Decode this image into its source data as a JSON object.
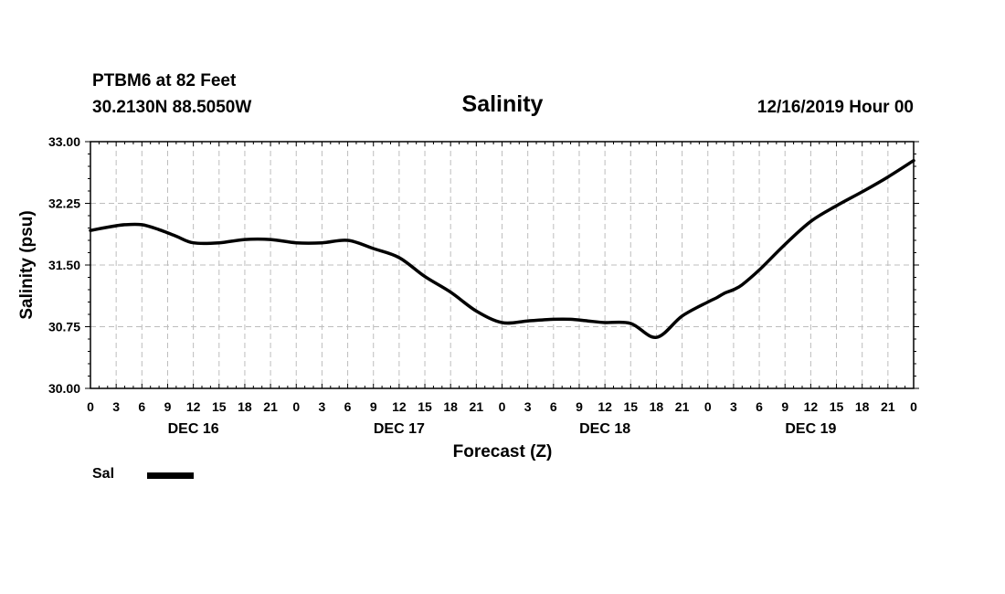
{
  "header": {
    "station": "PTBM6 at 82 Feet",
    "location": "30.2130N 88.5050W",
    "datetime": "12/16/2019 Hour 00"
  },
  "chart_data": {
    "type": "line",
    "title": "Salinity",
    "xlabel": "Forecast (Z)",
    "ylabel": "Salinity (psu)",
    "ylim": [
      30.0,
      33.0
    ],
    "yticks": [
      "30.00",
      "30.75",
      "31.50",
      "32.25",
      "33.00"
    ],
    "xlim": [
      0,
      96
    ],
    "xticks_hours": [
      0,
      3,
      6,
      9,
      12,
      15,
      18,
      21,
      24,
      27,
      30,
      33,
      36,
      39,
      42,
      45,
      48,
      51,
      54,
      57,
      60,
      63,
      66,
      69,
      72,
      75,
      78,
      81,
      84,
      87,
      90,
      93,
      96
    ],
    "xtick_labels": [
      "0",
      "3",
      "6",
      "9",
      "12",
      "15",
      "18",
      "21",
      "0",
      "3",
      "6",
      "9",
      "12",
      "15",
      "18",
      "21",
      "0",
      "3",
      "6",
      "9",
      "12",
      "15",
      "18",
      "21",
      "0",
      "3",
      "6",
      "9",
      "12",
      "15",
      "18",
      "21",
      "0"
    ],
    "day_labels": [
      {
        "hour": 12,
        "label": "DEC 16"
      },
      {
        "hour": 36,
        "label": "DEC 17"
      },
      {
        "hour": 60,
        "label": "DEC 18"
      },
      {
        "hour": 84,
        "label": "DEC 19"
      }
    ],
    "grid": true,
    "legend_position": "bottom-left",
    "series": [
      {
        "name": "Sal",
        "color": "#000000",
        "x": [
          0,
          2,
          4,
          6,
          8,
          10,
          12,
          15,
          18,
          21,
          24,
          27,
          30,
          33,
          36,
          39,
          42,
          45,
          48,
          51,
          54,
          56,
          58,
          60,
          63,
          66,
          69,
          72,
          73,
          74,
          75,
          76,
          78,
          81,
          84,
          87,
          90,
          93,
          96
        ],
        "values": [
          31.92,
          31.96,
          31.99,
          31.99,
          31.93,
          31.85,
          31.77,
          31.77,
          31.81,
          31.81,
          31.77,
          31.77,
          31.8,
          31.7,
          31.59,
          31.36,
          31.17,
          30.94,
          30.8,
          30.82,
          30.84,
          30.84,
          30.82,
          30.8,
          30.79,
          30.62,
          30.88,
          31.05,
          31.1,
          31.16,
          31.2,
          31.26,
          31.44,
          31.75,
          32.03,
          32.22,
          32.39,
          32.57,
          32.77
        ]
      }
    ]
  }
}
